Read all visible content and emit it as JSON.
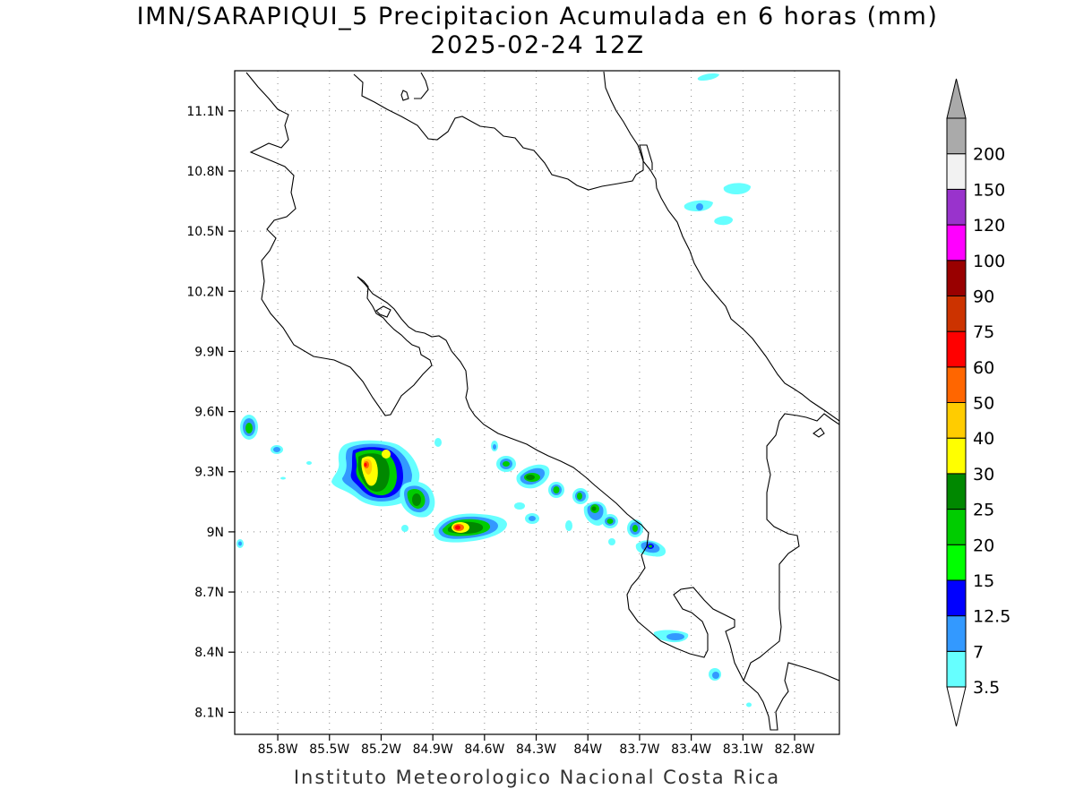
{
  "header": {
    "title": "IMN/SARAPIQUI_5 Precipitacion Acumulada en 6 horas (mm)",
    "subtitle": "2025-02-24 12Z"
  },
  "footer": {
    "credit": "Instituto Meteorologico Nacional Costa Rica"
  },
  "map": {
    "extent": {
      "lon_min": -86.05,
      "lon_max": -82.54,
      "lat_min": 7.99,
      "lat_max": 11.3
    },
    "lat_ticks": [
      "11.1N",
      "10.8N",
      "10.5N",
      "10.2N",
      "9.9N",
      "9.6N",
      "9.3N",
      "9N",
      "8.7N",
      "8.4N",
      "8.1N"
    ],
    "lon_ticks": [
      "85.8W",
      "85.5W",
      "85.2W",
      "84.9W",
      "84.6W",
      "84.3W",
      "84W",
      "83.7W",
      "83.4W",
      "83.1W",
      "82.8W"
    ],
    "gridlines": "dotted"
  },
  "legend": {
    "levels": [
      "3.5",
      "7",
      "12.5",
      "15",
      "20",
      "25",
      "30",
      "40",
      "50",
      "60",
      "75",
      "90",
      "100",
      "120",
      "150",
      "200"
    ],
    "colors": [
      "#66ffff",
      "#3399ff",
      "#0000ff",
      "#00ff00",
      "#00cc00",
      "#008800",
      "#ffff00",
      "#ffcc00",
      "#ff6600",
      "#ff0000",
      "#cc3300",
      "#990000",
      "#ff00ff",
      "#9933cc",
      "#f2f2f2",
      "#aaaaaa"
    ]
  }
}
